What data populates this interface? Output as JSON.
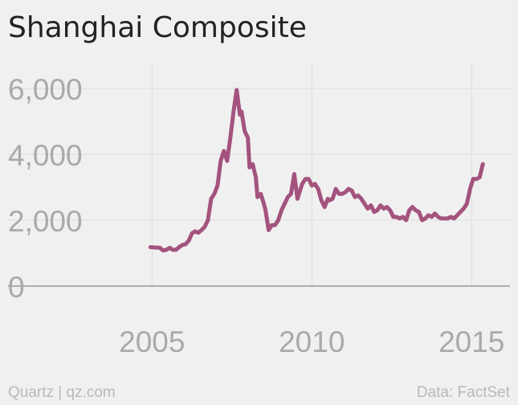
{
  "title": "Shanghai Composite",
  "footer": {
    "source_left": "Quartz | qz.com",
    "source_right": "Data: FactSet"
  },
  "colors": {
    "line": "#a3537e",
    "grid": "#dcdcdc",
    "axis": "#999999",
    "tick_text": "#a9a9a9",
    "background": "#f1f0f0"
  },
  "chart_data": {
    "type": "line",
    "title": "Shanghai Composite",
    "xlabel": "",
    "ylabel": "",
    "xlim": [
      2001.5,
      2016.2
    ],
    "ylim": [
      0,
      6000
    ],
    "x_ticks": [
      2005,
      2010,
      2015
    ],
    "x_tick_labels": [
      "2005",
      "2010",
      "2015"
    ],
    "y_ticks": [
      0,
      2000,
      4000,
      6000
    ],
    "y_tick_labels": [
      "0",
      "2,000",
      "4,000",
      "6,000"
    ],
    "grid": true,
    "series": [
      {
        "x": [
          2004.95,
          2005.1,
          2005.25,
          2005.35,
          2005.45,
          2005.55,
          2005.65,
          2005.75,
          2005.85,
          2005.95,
          2006.05,
          2006.15,
          2006.25,
          2006.35,
          2006.45,
          2006.55,
          2006.65,
          2006.75,
          2006.85,
          2006.95,
          2007.05,
          2007.15,
          2007.25,
          2007.35,
          2007.45,
          2007.55,
          2007.65,
          2007.75,
          2007.8,
          2007.9,
          2008.0,
          2008.05,
          2008.15,
          2008.25,
          2008.3,
          2008.4,
          2008.5,
          2008.55,
          2008.65,
          2008.75,
          2008.85,
          2008.95,
          2009.05,
          2009.15,
          2009.25,
          2009.35,
          2009.45,
          2009.55,
          2009.6,
          2009.7,
          2009.8,
          2009.9,
          2010.0,
          2010.1,
          2010.2,
          2010.3,
          2010.4,
          2010.5,
          2010.55,
          2010.65,
          2010.75,
          2010.85,
          2010.95,
          2011.05,
          2011.15,
          2011.25,
          2011.35,
          2011.45,
          2011.55,
          2011.65,
          2011.75,
          2011.85,
          2011.95,
          2012.05,
          2012.15,
          2012.25,
          2012.35,
          2012.45,
          2012.55,
          2012.65,
          2012.75,
          2012.85,
          2012.95,
          2013.05,
          2013.15,
          2013.25,
          2013.35,
          2013.45,
          2013.55,
          2013.65,
          2013.75,
          2013.85,
          2013.95,
          2014.05,
          2014.15,
          2014.25,
          2014.35,
          2014.45,
          2014.55,
          2014.65,
          2014.75,
          2014.85,
          2014.95,
          2015.05,
          2015.15,
          2015.25,
          2015.35
        ],
        "y": [
          1180,
          1170,
          1160,
          1080,
          1100,
          1160,
          1100,
          1100,
          1180,
          1250,
          1270,
          1380,
          1600,
          1660,
          1620,
          1700,
          1800,
          2000,
          2650,
          2800,
          3050,
          3800,
          4100,
          3800,
          4500,
          5300,
          5950,
          5200,
          5300,
          4700,
          4500,
          3600,
          3700,
          3300,
          2700,
          2800,
          2500,
          2300,
          1700,
          1850,
          1850,
          2000,
          2300,
          2500,
          2700,
          2800,
          3400,
          2650,
          2800,
          3100,
          3250,
          3250,
          3050,
          3100,
          2950,
          2600,
          2400,
          2650,
          2600,
          2650,
          2950,
          2800,
          2800,
          2850,
          2950,
          2900,
          2700,
          2750,
          2650,
          2500,
          2350,
          2450,
          2250,
          2300,
          2450,
          2350,
          2400,
          2300,
          2100,
          2100,
          2050,
          2100,
          2000,
          2300,
          2400,
          2300,
          2250,
          2000,
          2050,
          2150,
          2100,
          2200,
          2100,
          2050,
          2050,
          2050,
          2100,
          2050,
          2150,
          2250,
          2350,
          2500,
          2950,
          3250,
          3250,
          3300,
          3700
        ]
      }
    ]
  }
}
